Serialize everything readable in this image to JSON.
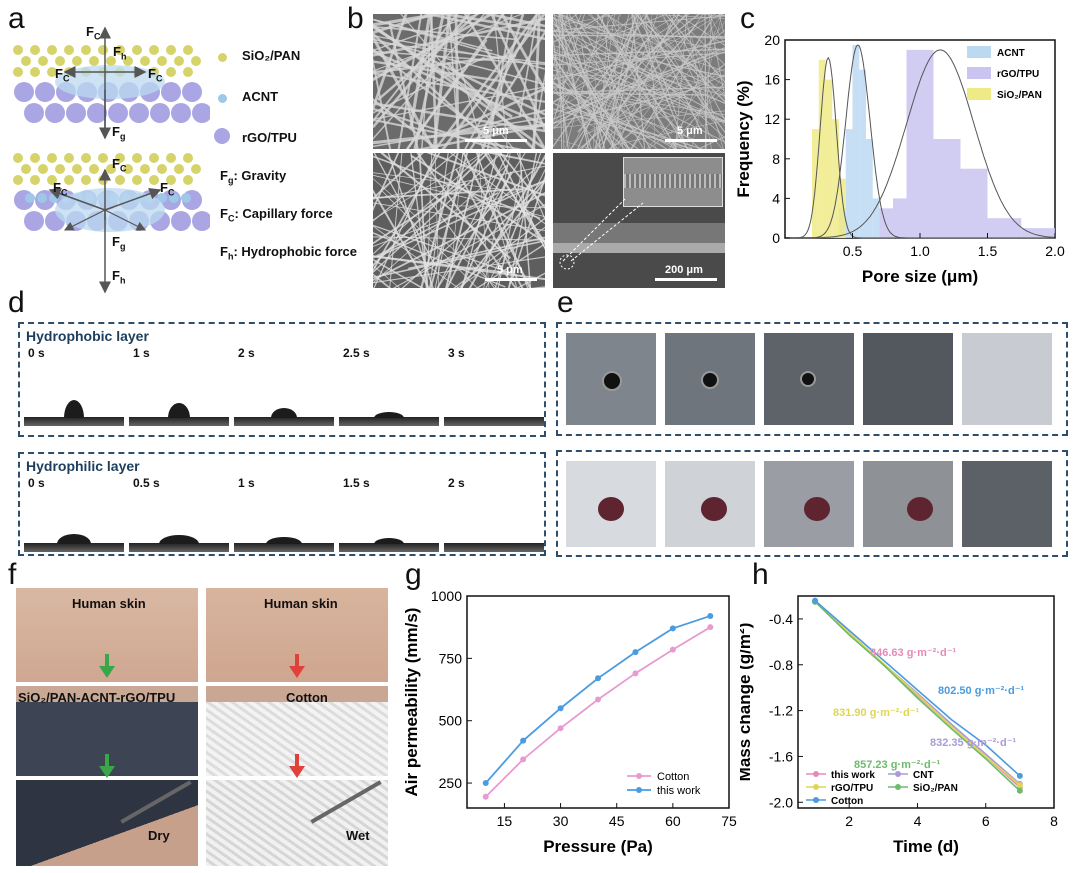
{
  "panels": [
    "a",
    "b",
    "c",
    "d",
    "e",
    "f",
    "g",
    "h"
  ],
  "panel_a": {
    "legend": [
      "SiO₂/PAN",
      "ACNT",
      "rGO/TPU"
    ],
    "definitions": [
      {
        "sym": "F",
        "sub": "g",
        "text": ": Gravity"
      },
      {
        "sym": "F",
        "sub": "C",
        "text": ": Capillary force"
      },
      {
        "sym": "F",
        "sub": "h",
        "text": ": Hydrophobic force"
      }
    ],
    "forces_top": {
      "fc_top": "C",
      "fh": "h",
      "fc_left": "C",
      "fc_right": "C",
      "fg": "g"
    },
    "forces_bottom": {
      "fc_top": "C",
      "fc_left": "C",
      "fc_right": "C",
      "fg": "g",
      "fh": "h"
    },
    "colors": {
      "sio2": "#d6d36a",
      "acnt": "#9ec7e8",
      "rgo": "#a9a6e3"
    }
  },
  "panel_b": {
    "scalebars": [
      "5 μm",
      "5 μm",
      "5 μm",
      "200 μm"
    ]
  },
  "panel_d": {
    "hydrophobic": {
      "title": "Hydrophobic layer",
      "times": [
        "0 s",
        "1 s",
        "2 s",
        "2.5 s",
        "3 s"
      ]
    },
    "hydrophilic": {
      "title": "Hydrophilic layer",
      "times": [
        "0 s",
        "0.5 s",
        "1 s",
        "1.5 s",
        "2 s"
      ]
    }
  },
  "panel_f": {
    "left": {
      "top": "Human skin",
      "mid": "SiO₂/PAN-ACNT-rGO/TPU",
      "bottom": "Dry"
    },
    "right": {
      "top": "Human skin",
      "mid": "Cotton",
      "bottom": "Wet"
    },
    "arrow_colors": {
      "left": "#3aa64a",
      "right": "#e0413a"
    }
  },
  "chart_data": [
    {
      "panel": "c",
      "type": "bar",
      "xlabel": "Pore size (μm)",
      "ylabel": "Frequency (%)",
      "xlim": [
        0,
        2.0
      ],
      "ylim": [
        0,
        20
      ],
      "xticks": [
        "0.5",
        "1.0",
        "1.5",
        "2.0"
      ],
      "yticks": [
        "0",
        "4",
        "8",
        "12",
        "16",
        "20"
      ],
      "legend": "top-right",
      "series": [
        {
          "name": "ACNT",
          "color": "#bcd9f2",
          "bins": [
            [
              0.4,
              0.45,
              3
            ],
            [
              0.45,
              0.5,
              11
            ],
            [
              0.5,
              0.55,
              19.5
            ],
            [
              0.55,
              0.6,
              17
            ],
            [
              0.6,
              0.65,
              10
            ],
            [
              0.65,
              0.7,
              4
            ]
          ],
          "fit_mu": 0.54,
          "fit_sigma": 0.09,
          "fit_peak": 19.5
        },
        {
          "name": "rGO/TPU",
          "color": "#c9c4f0",
          "bins": [
            [
              0.7,
              0.8,
              3
            ],
            [
              0.8,
              0.9,
              4
            ],
            [
              0.9,
              1.1,
              19
            ],
            [
              1.1,
              1.3,
              10
            ],
            [
              1.3,
              1.5,
              7
            ],
            [
              1.5,
              1.75,
              2
            ],
            [
              1.75,
              2.0,
              1
            ]
          ],
          "fit_mu": 1.15,
          "fit_sigma": 0.25,
          "fit_peak": 19
        },
        {
          "name": "SiO₂/PAN",
          "color": "#eeea86",
          "bins": [
            [
              0.2,
              0.25,
              11
            ],
            [
              0.25,
              0.3,
              18
            ],
            [
              0.3,
              0.35,
              16
            ],
            [
              0.35,
              0.4,
              12
            ],
            [
              0.4,
              0.45,
              6
            ]
          ],
          "fit_mu": 0.32,
          "fit_sigma": 0.06,
          "fit_peak": 18.2
        }
      ]
    },
    {
      "panel": "g",
      "type": "line",
      "xlabel": "Pressure (Pa)",
      "ylabel": "Air permeability (mm/s)",
      "xlim": [
        5,
        75
      ],
      "ylim": [
        150,
        1000
      ],
      "xticks": [
        "15",
        "30",
        "45",
        "60",
        "75"
      ],
      "yticks": [
        "250",
        "500",
        "750",
        "1000"
      ],
      "legend": "bottom-right",
      "x": [
        10,
        20,
        30,
        40,
        50,
        60,
        70
      ],
      "series": [
        {
          "name": "Cotton",
          "color": "#e79bd1",
          "values": [
            195,
            345,
            470,
            585,
            690,
            785,
            875
          ]
        },
        {
          "name": "this work",
          "color": "#4a9be0",
          "values": [
            250,
            420,
            550,
            670,
            775,
            870,
            920
          ]
        }
      ]
    },
    {
      "panel": "h",
      "type": "line",
      "xlabel": "Time (d)",
      "ylabel": "Mass change (g/m²)",
      "xlim": [
        0.5,
        8
      ],
      "ylim": [
        -2.05,
        -0.2
      ],
      "xticks": [
        "2",
        "4",
        "6",
        "8"
      ],
      "yticks": [
        "-0.4",
        "-0.8",
        "-1.2",
        "-1.6",
        "-2.0"
      ],
      "legend": "bottom",
      "x": [
        1,
        2,
        3,
        4,
        5,
        6,
        7
      ],
      "series": [
        {
          "name": "this work",
          "color": "#e58ab8",
          "values": [
            -0.25,
            -0.52,
            -0.8,
            -1.07,
            -1.34,
            -1.6,
            -1.87
          ]
        },
        {
          "name": "CNT",
          "color": "#a99bd6",
          "values": [
            -0.25,
            -0.52,
            -0.79,
            -1.05,
            -1.32,
            -1.58,
            -1.84
          ]
        },
        {
          "name": "rGO/TPU",
          "color": "#e1d653",
          "values": [
            -0.25,
            -0.52,
            -0.79,
            -1.06,
            -1.34,
            -1.6,
            -1.85
          ]
        },
        {
          "name": "SiO₂/PAN",
          "color": "#6dbb6b",
          "values": [
            -0.25,
            -0.54,
            -0.8,
            -1.09,
            -1.36,
            -1.62,
            -1.9
          ]
        },
        {
          "name": "Cotton",
          "color": "#4a9be0",
          "values": [
            -0.24,
            -0.5,
            -0.76,
            -1.02,
            -1.28,
            -1.5,
            -1.77
          ]
        }
      ],
      "annotations": [
        {
          "text": "846.63 g·m⁻²·d⁻¹",
          "color": "#e58ab8"
        },
        {
          "text": "802.50 g·m⁻²·d⁻¹",
          "color": "#4a9be0"
        },
        {
          "text": "831.90 g·m⁻²·d⁻¹",
          "color": "#e1d653"
        },
        {
          "text": "832.35 g·m⁻²·d⁻¹",
          "color": "#a99bd6"
        },
        {
          "text": "857.23 g·m⁻²·d⁻¹",
          "color": "#6dbb6b"
        }
      ]
    }
  ]
}
